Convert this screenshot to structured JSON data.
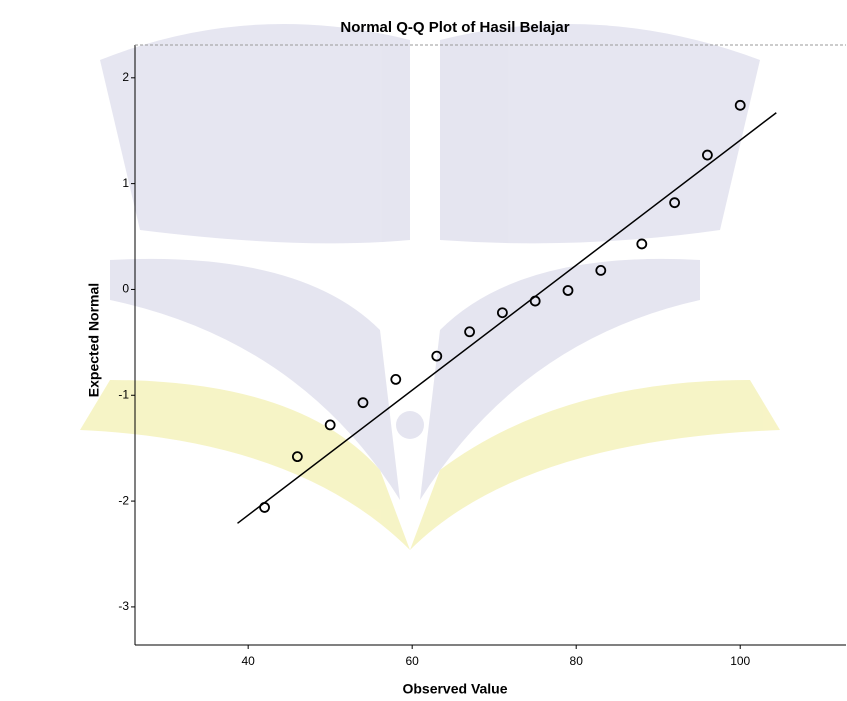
{
  "chart_data": {
    "type": "scatter",
    "title": "Normal Q-Q Plot of Hasil Belajar",
    "x_label": "Observed Value",
    "y_label": "Expected Normal",
    "points": {
      "x": [
        42,
        46,
        50,
        54,
        58,
        63,
        67,
        71,
        75,
        79,
        83,
        88,
        92,
        96,
        100
      ],
      "y": [
        -2.06,
        -1.58,
        -1.28,
        -1.07,
        -0.85,
        -0.63,
        -0.4,
        -0.22,
        -0.11,
        -0.01,
        0.18,
        0.43,
        0.82,
        1.27,
        1.74
      ]
    },
    "reference_line": {
      "x": [
        38.7,
        104.4
      ],
      "y": [
        -2.21,
        1.67
      ]
    },
    "xlim": [
      26.2,
      112.9
    ],
    "xticks": [
      40,
      60,
      80,
      100
    ],
    "ylim": [
      -3.36,
      2.31
    ],
    "yticks": [
      2,
      1,
      0,
      -1,
      -2,
      -3
    ],
    "marker_color": "#000000",
    "line_color": "#000000"
  }
}
